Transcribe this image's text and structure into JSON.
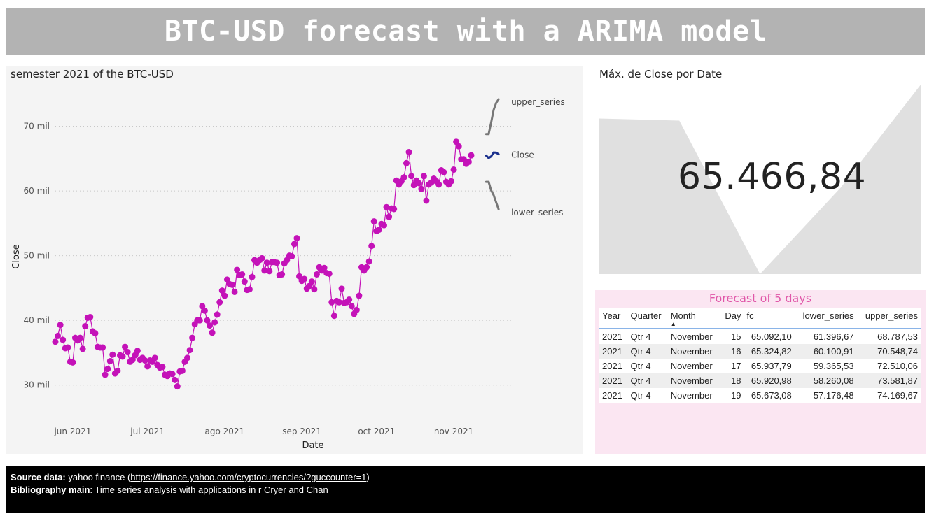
{
  "banner": {
    "title": "BTC-USD forecast with a ARIMA model"
  },
  "colors": {
    "close": "#c412b8",
    "forecast": "#1a2f8c",
    "bounds": "#777777",
    "kpi_area": "#e0e0e0",
    "table_title": "#e056a8"
  },
  "chart_data": [
    {
      "type": "line",
      "title": "semester 2021 of the BTC-USD",
      "xlabel": "Date",
      "ylabel": "Close",
      "x_tick_labels": [
        "jun 2021",
        "jul 2021",
        "ago 2021",
        "sep 2021",
        "oct 2021",
        "nov 2021"
      ],
      "x_tick_dates": [
        "2021-06-01",
        "2021-07-01",
        "2021-08-01",
        "2021-09-01",
        "2021-10-01",
        "2021-11-01"
      ],
      "y_tick_labels": [
        "30 mil",
        "40 mil",
        "50 mil",
        "60 mil",
        "70 mil"
      ],
      "y_tick_values": [
        30000,
        40000,
        50000,
        60000,
        70000
      ],
      "ylim": [
        25000,
        76000
      ],
      "xlim": [
        "2021-05-25",
        "2021-12-05"
      ],
      "grid": "horizontal dotted",
      "series_labels": {
        "upper": "upper_series",
        "close": "Close",
        "lower": "lower_series"
      },
      "series": [
        {
          "name": "Close",
          "start": "2021-05-25",
          "values": [
            36700,
            37600,
            39300,
            37000,
            35700,
            35800,
            33600,
            33500,
            37300,
            36900,
            37300,
            35600,
            39100,
            40400,
            40500,
            38300,
            38000,
            35900,
            35800,
            35800,
            31600,
            32500,
            33700,
            34700,
            31800,
            32200,
            34600,
            34400,
            35900,
            35100,
            33600,
            33900,
            34600,
            35300,
            33900,
            34200,
            33800,
            32900,
            33800,
            33600,
            34200,
            33100,
            32700,
            32800,
            31600,
            31400,
            31800,
            31700,
            30800,
            29800,
            32100,
            32200,
            33600,
            34200,
            35400,
            37300,
            39400,
            40000,
            40000,
            42200,
            41500,
            40000,
            39200,
            38100,
            39700,
            40900,
            42800,
            44600,
            43800,
            46300,
            45600,
            45500,
            44400,
            47800,
            47000,
            47100,
            46000,
            44700,
            44800,
            46700,
            49300,
            48900,
            49300,
            49600,
            47700,
            48900,
            47600,
            49000,
            49000,
            48900,
            47000,
            47100,
            48800,
            49300,
            50000,
            49900,
            51800,
            52700,
            46800,
            46100,
            46400,
            44900,
            45300,
            46000,
            44800,
            47100,
            48200,
            47700,
            48100,
            47300,
            47200,
            42800,
            40700,
            43000,
            42800,
            44900,
            42700,
            42800,
            43200,
            42200,
            41000,
            41600,
            43800,
            48200,
            47700,
            48200,
            49100,
            51500,
            55300,
            53800,
            54000,
            54900,
            54700,
            57500,
            56000,
            57300,
            57200,
            61600,
            61000,
            61500,
            62100,
            64300,
            66000,
            62300,
            60900,
            61600,
            61200,
            60300,
            62300,
            58500,
            61000,
            61300,
            61900,
            61500,
            61000,
            63200,
            62900,
            61400,
            61000,
            61500,
            63300,
            67600,
            66900,
            64900,
            64900,
            64200,
            64500,
            65500
          ]
        },
        {
          "name": "Close",
          "dates": [
            "2021-11-14",
            "2021-11-15",
            "2021-11-16",
            "2021-11-17",
            "2021-11-18",
            "2021-11-19"
          ],
          "values": [
            65466,
            65092,
            65325,
            65938,
            65921,
            65673
          ]
        },
        {
          "name": "lower_series",
          "dates": [
            "2021-11-14",
            "2021-11-15",
            "2021-11-16",
            "2021-11-17",
            "2021-11-18",
            "2021-11-19"
          ],
          "values": [
            61400,
            61397,
            60101,
            59366,
            58260,
            57176
          ]
        },
        {
          "name": "upper_series",
          "dates": [
            "2021-11-14",
            "2021-11-15",
            "2021-11-16",
            "2021-11-17",
            "2021-11-18",
            "2021-11-19"
          ],
          "values": [
            68788,
            68788,
            70549,
            72510,
            73582,
            74170
          ]
        }
      ]
    },
    {
      "type": "area",
      "title": "Máx. de Close por Date",
      "display_value": "65.466,84",
      "values": [
        65000,
        64500,
        29000,
        49000,
        73000
      ],
      "ylim": [
        29000,
        73000
      ]
    }
  ],
  "table": {
    "title": "Forecast of 5 days",
    "sorted_column": "Month",
    "columns": [
      "Year",
      "Quarter",
      "Month",
      "Day",
      "fc",
      "lower_series",
      "upper_series"
    ],
    "rows": [
      [
        "2021",
        "Qtr 4",
        "November",
        "15",
        "65.092,10",
        "61.396,67",
        "68.787,53"
      ],
      [
        "2021",
        "Qtr 4",
        "November",
        "16",
        "65.324,82",
        "60.100,91",
        "70.548,74"
      ],
      [
        "2021",
        "Qtr 4",
        "November",
        "17",
        "65.937,79",
        "59.365,53",
        "72.510,06"
      ],
      [
        "2021",
        "Qtr 4",
        "November",
        "18",
        "65.920,98",
        "58.260,08",
        "73.581,87"
      ],
      [
        "2021",
        "Qtr 4",
        "November",
        "19",
        "65.673,08",
        "57.176,48",
        "74.169,67"
      ]
    ]
  },
  "footer": {
    "source_label": "Source data:",
    "source_text": "yahoo finance (",
    "source_url": "https://finance.yahoo.com/cryptocurrencies/?guccounter=1",
    "source_close": ")",
    "biblio_label": "Bibliography main",
    "biblio_text": ": Time series analysis with applications in r Cryer and Chan"
  }
}
